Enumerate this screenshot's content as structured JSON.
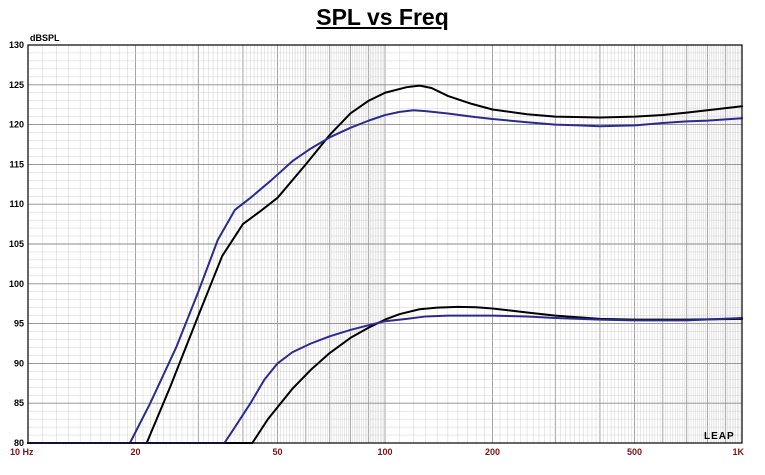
{
  "chart_data": {
    "type": "line",
    "title": "SPL vs Freq",
    "ylabel": "dBSPL",
    "xlabel": "",
    "x_scale": "log",
    "xlim": [
      10,
      1000
    ],
    "ylim": [
      80,
      130
    ],
    "grid": true,
    "x_tick_labels": [
      {
        "value": 10,
        "label": "10 Hz"
      },
      {
        "value": 20,
        "label": "20"
      },
      {
        "value": 50,
        "label": "50"
      },
      {
        "value": 100,
        "label": "100"
      },
      {
        "value": 200,
        "label": "200"
      },
      {
        "value": 500,
        "label": "500"
      },
      {
        "value": 1000,
        "label": "1K"
      }
    ],
    "y_ticks": [
      80,
      85,
      90,
      95,
      100,
      105,
      110,
      115,
      120,
      125,
      130
    ],
    "brand_mark": "LEAP",
    "series": [
      {
        "color": "#000000",
        "points": [
          [
            10,
            80
          ],
          [
            21.5,
            80
          ],
          [
            25,
            87
          ],
          [
            30,
            96
          ],
          [
            35,
            103.5
          ],
          [
            40,
            107.5
          ],
          [
            45,
            109.2
          ],
          [
            50,
            110.8
          ],
          [
            60,
            115
          ],
          [
            70,
            118.7
          ],
          [
            80,
            121.4
          ],
          [
            90,
            123
          ],
          [
            100,
            124
          ],
          [
            115,
            124.7
          ],
          [
            125,
            124.9
          ],
          [
            135,
            124.6
          ],
          [
            150,
            123.6
          ],
          [
            175,
            122.6
          ],
          [
            200,
            121.9
          ],
          [
            250,
            121.3
          ],
          [
            300,
            121
          ],
          [
            400,
            120.9
          ],
          [
            500,
            121
          ],
          [
            600,
            121.2
          ],
          [
            700,
            121.5
          ],
          [
            800,
            121.8
          ],
          [
            1000,
            122.3
          ]
        ]
      },
      {
        "color": "#2b2b8f",
        "points": [
          [
            10,
            80
          ],
          [
            19.3,
            80
          ],
          [
            22,
            85
          ],
          [
            26,
            92
          ],
          [
            30,
            99
          ],
          [
            34,
            105.5
          ],
          [
            38,
            109.3
          ],
          [
            42,
            110.8
          ],
          [
            48,
            113
          ],
          [
            55,
            115.4
          ],
          [
            62,
            117
          ],
          [
            70,
            118.4
          ],
          [
            80,
            119.6
          ],
          [
            90,
            120.5
          ],
          [
            100,
            121.2
          ],
          [
            110,
            121.6
          ],
          [
            120,
            121.8
          ],
          [
            130,
            121.7
          ],
          [
            150,
            121.4
          ],
          [
            175,
            121
          ],
          [
            200,
            120.7
          ],
          [
            250,
            120.3
          ],
          [
            300,
            120
          ],
          [
            350,
            119.9
          ],
          [
            400,
            119.8
          ],
          [
            500,
            119.9
          ],
          [
            600,
            120.2
          ],
          [
            700,
            120.4
          ],
          [
            800,
            120.5
          ],
          [
            1000,
            120.8
          ]
        ]
      },
      {
        "color": "#000000",
        "points": [
          [
            10,
            80
          ],
          [
            42.5,
            80
          ],
          [
            47,
            83
          ],
          [
            55,
            86.8
          ],
          [
            62,
            89.2
          ],
          [
            70,
            91.3
          ],
          [
            80,
            93.2
          ],
          [
            90,
            94.5
          ],
          [
            100,
            95.5
          ],
          [
            110,
            96.2
          ],
          [
            125,
            96.8
          ],
          [
            140,
            97
          ],
          [
            160,
            97.1
          ],
          [
            180,
            97.05
          ],
          [
            200,
            96.9
          ],
          [
            250,
            96.4
          ],
          [
            300,
            96
          ],
          [
            400,
            95.6
          ],
          [
            500,
            95.5
          ],
          [
            700,
            95.5
          ],
          [
            1000,
            95.6
          ]
        ]
      },
      {
        "color": "#2b2b8f",
        "points": [
          [
            10,
            80
          ],
          [
            35.5,
            80
          ],
          [
            38,
            82
          ],
          [
            42,
            85
          ],
          [
            46,
            88
          ],
          [
            50,
            90
          ],
          [
            55,
            91.4
          ],
          [
            62,
            92.5
          ],
          [
            70,
            93.4
          ],
          [
            80,
            94.2
          ],
          [
            90,
            94.8
          ],
          [
            100,
            95.3
          ],
          [
            115,
            95.6
          ],
          [
            130,
            95.9
          ],
          [
            150,
            96
          ],
          [
            175,
            96
          ],
          [
            200,
            96
          ],
          [
            250,
            95.9
          ],
          [
            300,
            95.7
          ],
          [
            400,
            95.5
          ],
          [
            500,
            95.4
          ],
          [
            700,
            95.4
          ],
          [
            1000,
            95.7
          ]
        ]
      }
    ]
  }
}
